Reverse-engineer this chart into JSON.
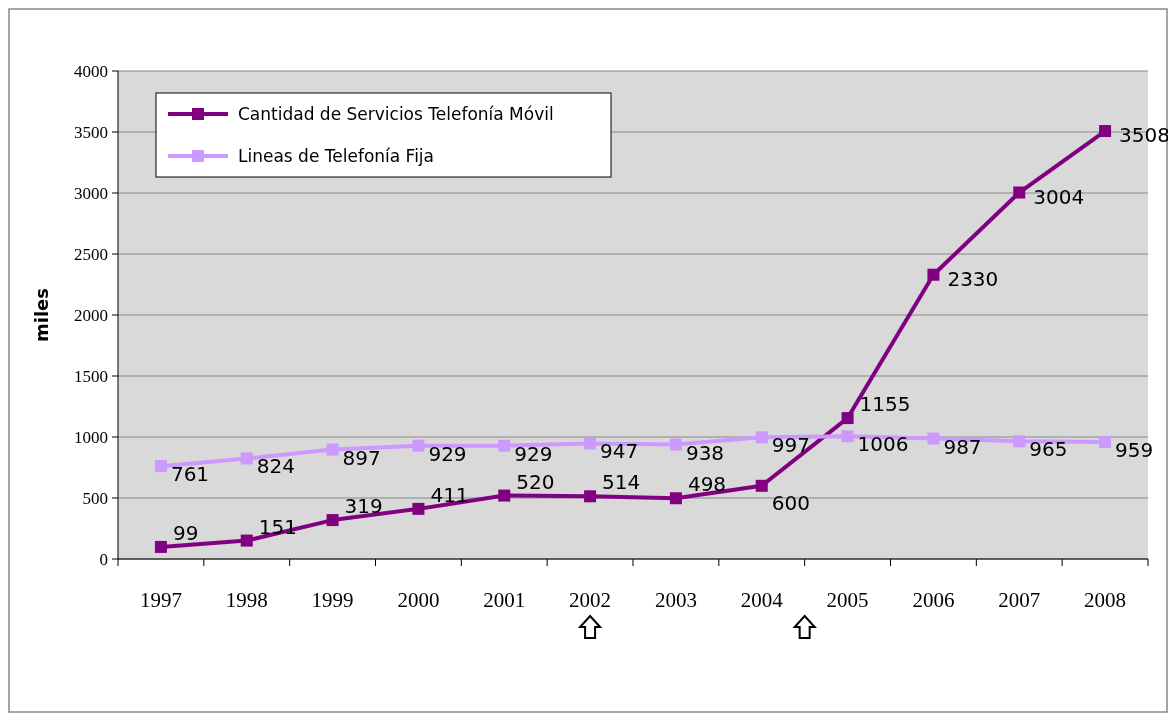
{
  "chart_data": {
    "type": "line",
    "ylabel": "miles",
    "categories": [
      "1997",
      "1998",
      "1999",
      "2000",
      "2001",
      "2002",
      "2003",
      "2004",
      "2005",
      "2006",
      "2007",
      "2008"
    ],
    "series": [
      {
        "name": "Cantidad de Servicios Telefonía Móvil",
        "color": "#800080",
        "values": [
          99,
          151,
          319,
          411,
          520,
          514,
          498,
          600,
          1155,
          2330,
          3004,
          3508
        ]
      },
      {
        "name": "Lineas de Telefonía Fija",
        "color": "#cc99ff",
        "values": [
          761,
          824,
          897,
          929,
          929,
          947,
          938,
          997,
          1006,
          987,
          965,
          959
        ]
      }
    ],
    "ylim": [
      0,
      4000
    ],
    "yticks": [
      0,
      500,
      1000,
      1500,
      2000,
      2500,
      3000,
      3500,
      4000
    ],
    "grid": "y",
    "legend": "top left",
    "marker": "square",
    "data_labels": true
  }
}
